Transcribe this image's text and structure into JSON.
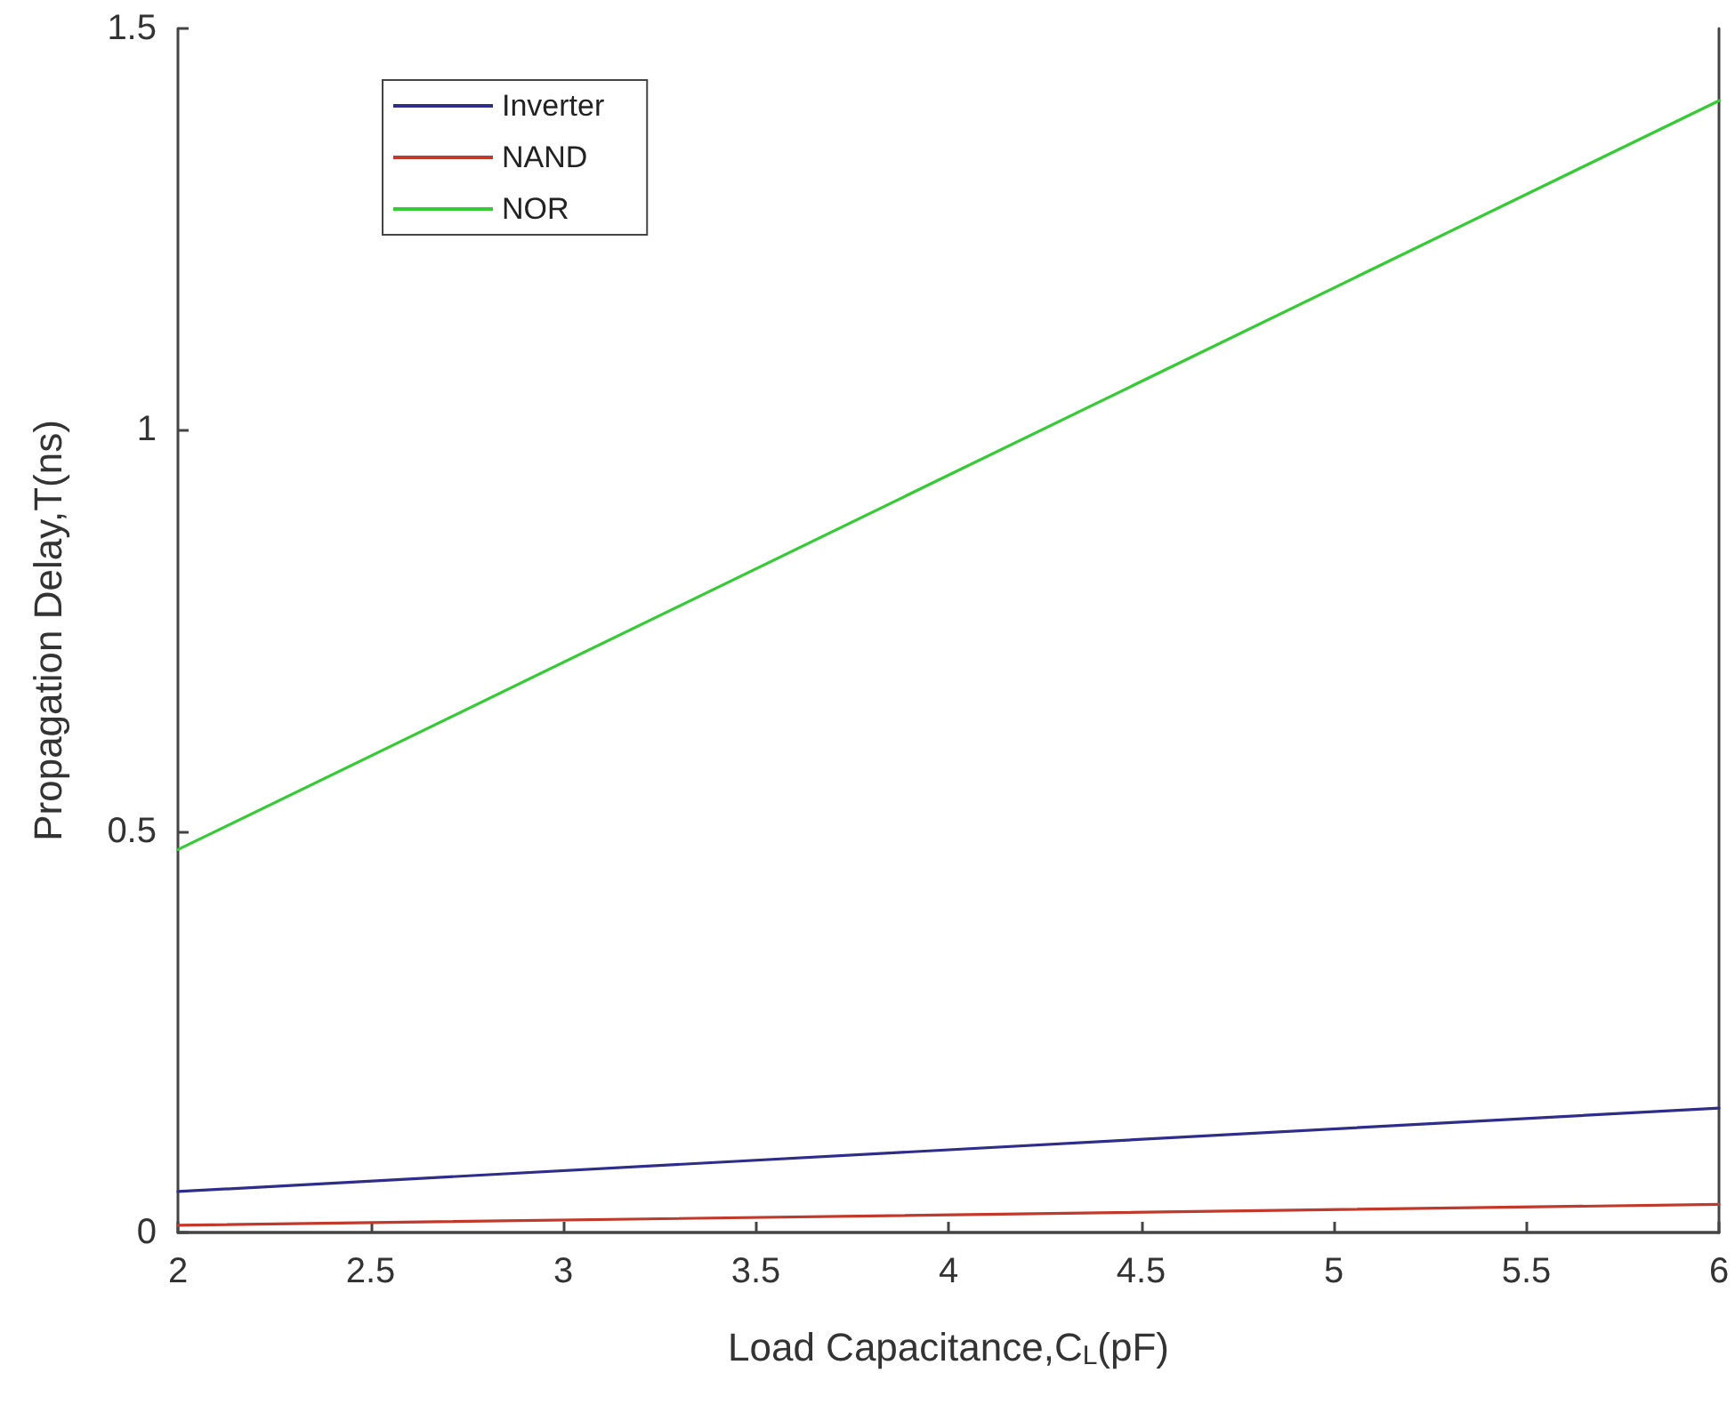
{
  "chart_data": {
    "type": "line",
    "xlabel": "Load Capacitance,C$_{L}$(pF)",
    "ylabel": "Propagation Delay,T(ns)",
    "x": [
      2,
      6
    ],
    "series": [
      {
        "name": "Inverter",
        "color": "#2e2e8a",
        "values": [
          0.051,
          0.155
        ]
      },
      {
        "name": "NAND",
        "color": "#c0392b",
        "values": [
          0.009,
          0.035
        ]
      },
      {
        "name": "NOR",
        "color": "#33cc33",
        "values": [
          0.477,
          1.41
        ]
      }
    ],
    "xlim": [
      2,
      6
    ],
    "xticks": [
      2,
      2.5,
      3,
      3.5,
      4,
      4.5,
      5,
      5.5,
      6
    ],
    "ylim": [
      0,
      1.5
    ],
    "yticks": [
      0,
      0.5,
      1,
      1.5
    ],
    "grid": false,
    "legend": "top left",
    "marker": "none",
    "line_style": "solid"
  }
}
